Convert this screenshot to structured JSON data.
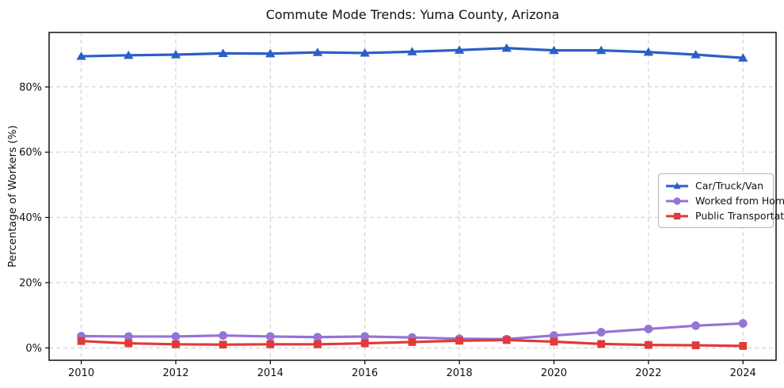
{
  "chart_data": {
    "type": "line",
    "title": "Commute Mode Trends: Yuma County, Arizona",
    "xlabel": "",
    "ylabel": "Percentage of Workers (%)",
    "x": [
      2010,
      2011,
      2012,
      2013,
      2014,
      2015,
      2016,
      2017,
      2018,
      2019,
      2020,
      2021,
      2022,
      2023,
      2024
    ],
    "series": [
      {
        "name": "Car/Truck/Van",
        "marker": "triangle",
        "color": "#2b5fc7",
        "values": [
          89.4,
          89.7,
          89.9,
          90.3,
          90.2,
          90.6,
          90.4,
          90.8,
          91.3,
          91.9,
          91.2,
          91.2,
          90.7,
          89.9,
          88.9
        ]
      },
      {
        "name": "Worked from Home",
        "marker": "circle",
        "color": "#9673d6",
        "values": [
          3.6,
          3.5,
          3.5,
          3.8,
          3.5,
          3.3,
          3.5,
          3.2,
          2.8,
          2.7,
          3.8,
          4.8,
          5.8,
          6.8,
          7.5
        ]
      },
      {
        "name": "Public Transportation",
        "marker": "square",
        "color": "#e03a3a",
        "values": [
          2.1,
          1.4,
          1.1,
          1.0,
          1.1,
          1.1,
          1.4,
          1.8,
          2.2,
          2.4,
          1.9,
          1.2,
          0.9,
          0.8,
          0.6
        ]
      }
    ],
    "xticks": [
      2010,
      2012,
      2014,
      2016,
      2018,
      2020,
      2022,
      2024
    ],
    "ytick_values": [
      0,
      20,
      40,
      60,
      80
    ],
    "ytick_labels": [
      "0%",
      "20%",
      "40%",
      "60%",
      "80%"
    ],
    "xlim": [
      2009.32,
      2024.7
    ],
    "ylim": [
      -3.8,
      96.7
    ],
    "grid": true,
    "grid_style": "dashed",
    "grid_color": "#cccccc",
    "axes_color": "#000000",
    "background_color": "#ffffff",
    "legend_position": "center right"
  }
}
